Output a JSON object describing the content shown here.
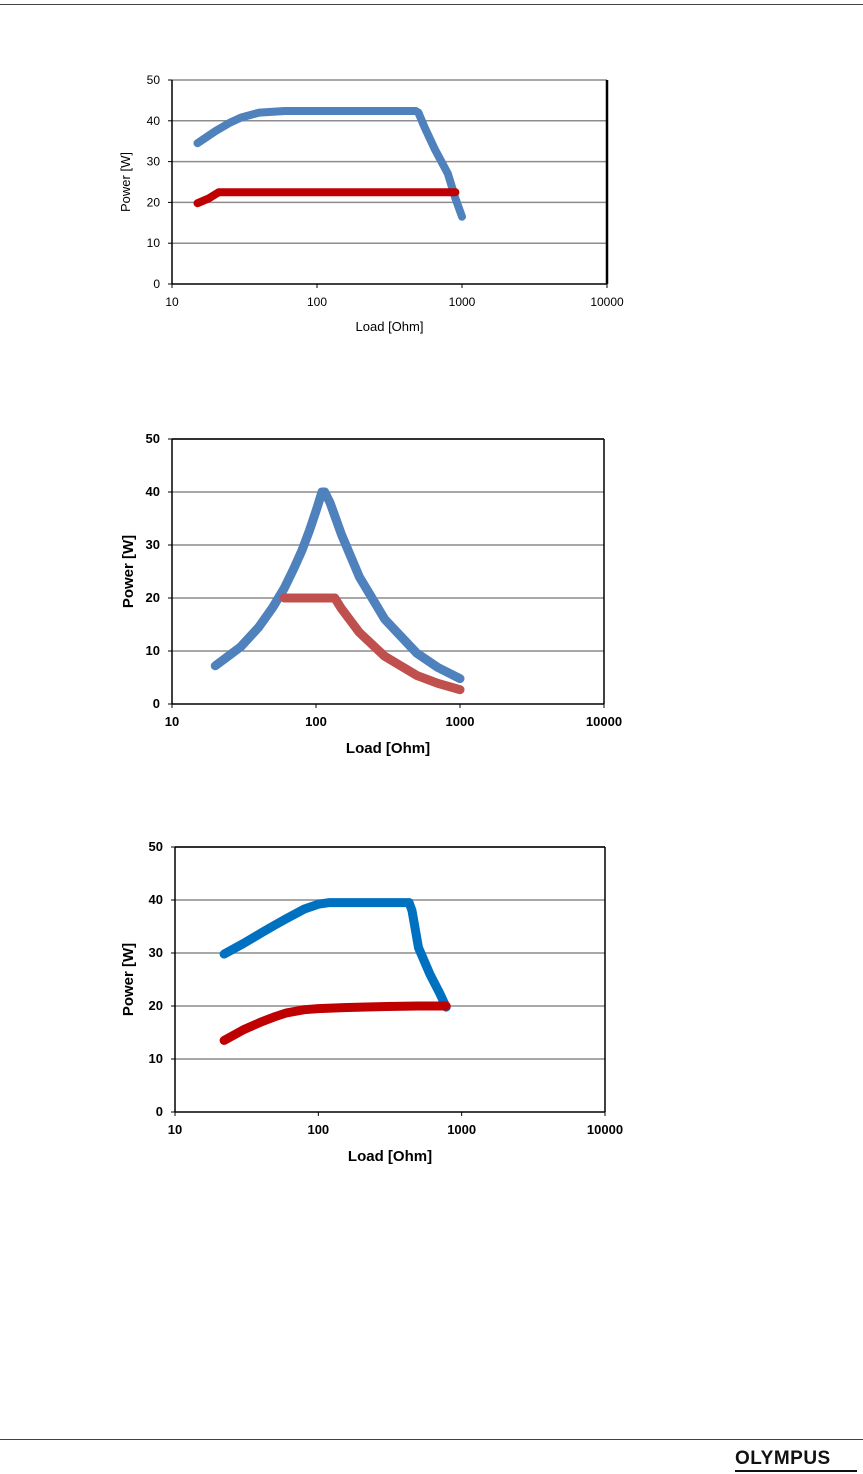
{
  "chart_data": [
    {
      "type": "line",
      "xscale": "log",
      "xlabel": "Load [Ohm]",
      "ylabel": "Power [W]",
      "xlim": [
        10,
        10000
      ],
      "ylim": [
        0,
        50
      ],
      "xticks": [
        "10",
        "100",
        "1000",
        "10000"
      ],
      "yticks": [
        "0",
        "10",
        "20",
        "30",
        "40",
        "50"
      ],
      "grid": true,
      "series": [
        {
          "name": "blue",
          "color": "#4f81bd",
          "x": [
            15,
            20,
            25,
            30,
            40,
            60,
            100,
            200,
            300,
            480,
            500,
            550,
            650,
            800,
            900,
            1000
          ],
          "y": [
            34.5,
            37.5,
            39.5,
            40.8,
            42,
            42.4,
            42.4,
            42.4,
            42.4,
            42.4,
            42,
            38.5,
            33,
            27,
            21,
            16.5
          ]
        },
        {
          "name": "red",
          "color": "#c00000",
          "x": [
            15,
            18,
            21,
            100,
            500,
            900
          ],
          "y": [
            19.8,
            21,
            22.5,
            22.5,
            22.5,
            22.5
          ]
        }
      ]
    },
    {
      "type": "line",
      "xscale": "log",
      "xlabel": "Load [Ohm]",
      "ylabel": "Power [W]",
      "xlim": [
        10,
        10000
      ],
      "ylim": [
        0,
        50
      ],
      "xticks": [
        "10",
        "100",
        "1000",
        "10000"
      ],
      "yticks": [
        "0",
        "10",
        "20",
        "30",
        "40",
        "50"
      ],
      "grid": true,
      "series": [
        {
          "name": "blue",
          "color": "#4f81bd",
          "x": [
            20,
            30,
            40,
            50,
            60,
            70,
            80,
            90,
            100,
            110,
            115,
            125,
            150,
            200,
            300,
            500,
            700,
            1000
          ],
          "y": [
            7.2,
            10.8,
            14.5,
            18.2,
            21.8,
            25.5,
            29,
            32.7,
            36.4,
            40,
            40,
            38,
            32,
            24,
            16,
            9.6,
            6.9,
            4.8
          ]
        },
        {
          "name": "red",
          "color": "#c0504d",
          "x": [
            60,
            80,
            100,
            120,
            135,
            150,
            200,
            300,
            500,
            700,
            1000
          ],
          "y": [
            20,
            20,
            20,
            20,
            20,
            18,
            13.5,
            9,
            5.4,
            3.9,
            2.7
          ]
        }
      ]
    },
    {
      "type": "line",
      "xscale": "log",
      "xlabel": "Load [Ohm]",
      "ylabel": "Power [W]",
      "xlim": [
        10,
        10000
      ],
      "ylim": [
        0,
        50
      ],
      "xticks": [
        "10",
        "100",
        "1000",
        "10000"
      ],
      "yticks": [
        "0",
        "10",
        "20",
        "30",
        "40",
        "50"
      ],
      "grid": true,
      "series": [
        {
          "name": "blue",
          "color": "#0070c0",
          "x": [
            22,
            30,
            40,
            50,
            60,
            80,
            100,
            120,
            200,
            300,
            400,
            430,
            450,
            500,
            600,
            700,
            780
          ],
          "y": [
            29.8,
            31.8,
            33.8,
            35.3,
            36.5,
            38.3,
            39.2,
            39.5,
            39.5,
            39.5,
            39.5,
            39.5,
            38,
            31,
            26,
            22.5,
            19.8
          ]
        },
        {
          "name": "red",
          "color": "#c00000",
          "x": [
            22,
            30,
            40,
            50,
            60,
            80,
            100,
            150,
            200,
            300,
            500,
            780
          ],
          "y": [
            13.5,
            15.5,
            17,
            18,
            18.7,
            19.3,
            19.5,
            19.7,
            19.8,
            19.9,
            20,
            20
          ]
        }
      ]
    }
  ],
  "footer": {
    "logo_text": "OLYMPUS"
  }
}
